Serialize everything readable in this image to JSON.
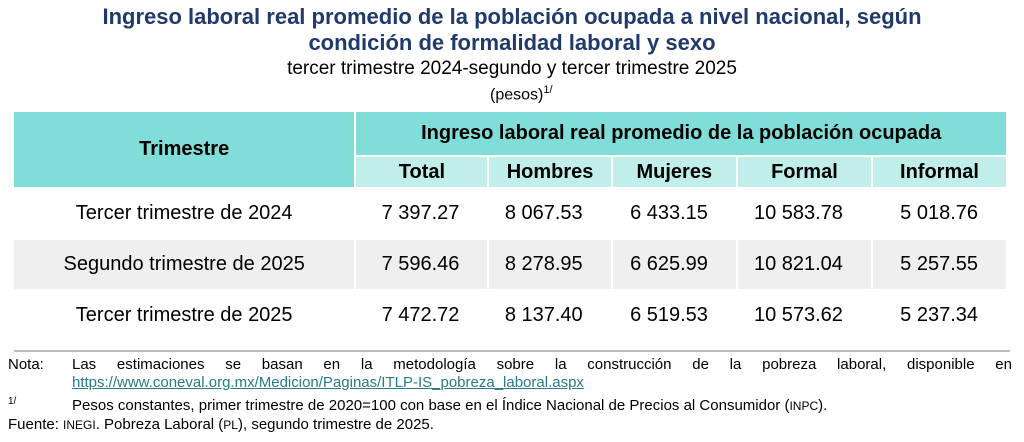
{
  "title_line1": "Ingreso laboral real promedio de la población ocupada a nivel nacional, según",
  "title_line2": "condición de formalidad laboral y sexo",
  "subtitle": "tercer trimestre 2024-segundo y tercer trimestre 2025",
  "unit": "(pesos)",
  "unit_note": "1/",
  "table": {
    "row_header": "Trimestre",
    "group_header": "Ingreso laboral real promedio de la población ocupada",
    "columns": [
      "Total",
      "Hombres",
      "Mujeres",
      "Formal",
      "Informal"
    ],
    "rows": [
      {
        "label": "Tercer trimestre de 2024",
        "values": [
          "7 397.27",
          "8 067.53",
          "6 433.15",
          "10 583.78",
          "5 018.76"
        ]
      },
      {
        "label": "Segundo trimestre de 2025",
        "values": [
          "7 596.46",
          "8 278.95",
          "6 625.99",
          "10 821.04",
          "5 257.55"
        ]
      },
      {
        "label": "Tercer trimestre de 2025",
        "values": [
          "7 472.72",
          "8 137.40",
          "6 519.53",
          "10 573.62",
          "5 237.34"
        ]
      }
    ]
  },
  "notes": {
    "nota_label": "Nota:",
    "nota_text": "Las estimaciones se basan en la metodología sobre la construcción de la pobreza laboral, disponible en",
    "nota_link": "https://www.coneval.org.mx/Medicion/Paginas/ITLP-IS_pobreza_laboral.aspx",
    "fn_label": "1/",
    "fn_text": "Pesos constantes, primer trimestre de 2020=100 con base en el Índice Nacional de Precios al Consumidor (",
    "fn_abbr": "INPC",
    "fn_end": ").",
    "fuente_label": "Fuente:",
    "fuente_abbr": "INEGI",
    "fuente_text1": ". Pobreza Laboral (",
    "fuente_abbr2": "PL",
    "fuente_text2": "), segundo trimestre de 2025."
  }
}
